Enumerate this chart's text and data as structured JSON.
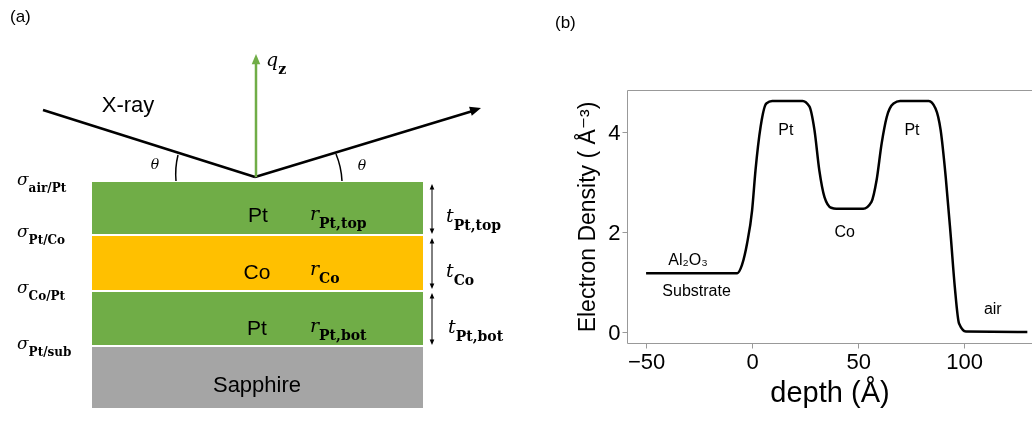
{
  "chart_data": [
    {
      "type": "other",
      "title": "(a)",
      "annotations": [
        "X-ray",
        "q$_{z}$",
        "θ",
        "θ",
        "σ$_{air/Pt}$",
        "σ$_{Pt/Co}$",
        "σ$_{Co/Pt}$",
        "σ$_{Pt/sub}$",
        "Pt",
        "r$_{Pt,top}$",
        "t$_{Pt,top}$",
        "Co",
        "r$_{Co}$",
        "t$_{Co}$",
        "Pt",
        "r$_{Pt,bot}$",
        "t$_{Pt,bot}$",
        "Sapphire"
      ]
    },
    {
      "type": "line",
      "title": "(b)",
      "xlabel": "depth (Å)",
      "ylabel": "Electron Density ( Å⁻³)",
      "color": "#000000",
      "x": [
        -50,
        -7,
        -4.8,
        -2.4,
        0,
        1.6,
        4,
        6.7,
        9.5,
        23.8,
        27,
        29.4,
        31.7,
        34.1,
        37.3,
        39.7,
        52.4,
        56.3,
        58.7,
        61.1,
        63.5,
        66.7,
        69.8,
        83.3,
        86.5,
        88.9,
        91.3,
        93.7,
        95.6,
        97.6,
        100.8,
        129.8
      ],
      "values": [
        1.18,
        1.18,
        1.34,
        1.77,
        2.44,
        3.24,
        4.11,
        4.58,
        4.63,
        4.63,
        4.52,
        4.05,
        3.24,
        2.71,
        2.49,
        2.47,
        2.47,
        2.61,
        3.04,
        3.78,
        4.31,
        4.58,
        4.63,
        4.63,
        4.48,
        4.05,
        3.11,
        1.91,
        0.9,
        0.17,
        0.01,
        0
      ],
      "xlim": [
        -59,
        132
      ],
      "ylim": [
        -0.22,
        4.85
      ],
      "xticks": [
        -50,
        0,
        50,
        100
      ],
      "yticks": [
        0,
        2,
        4
      ],
      "grid": false,
      "annotations": [
        "Pt",
        "Pt",
        "Co",
        "Al₂O₃",
        "Substrate",
        "air"
      ]
    }
  ]
}
